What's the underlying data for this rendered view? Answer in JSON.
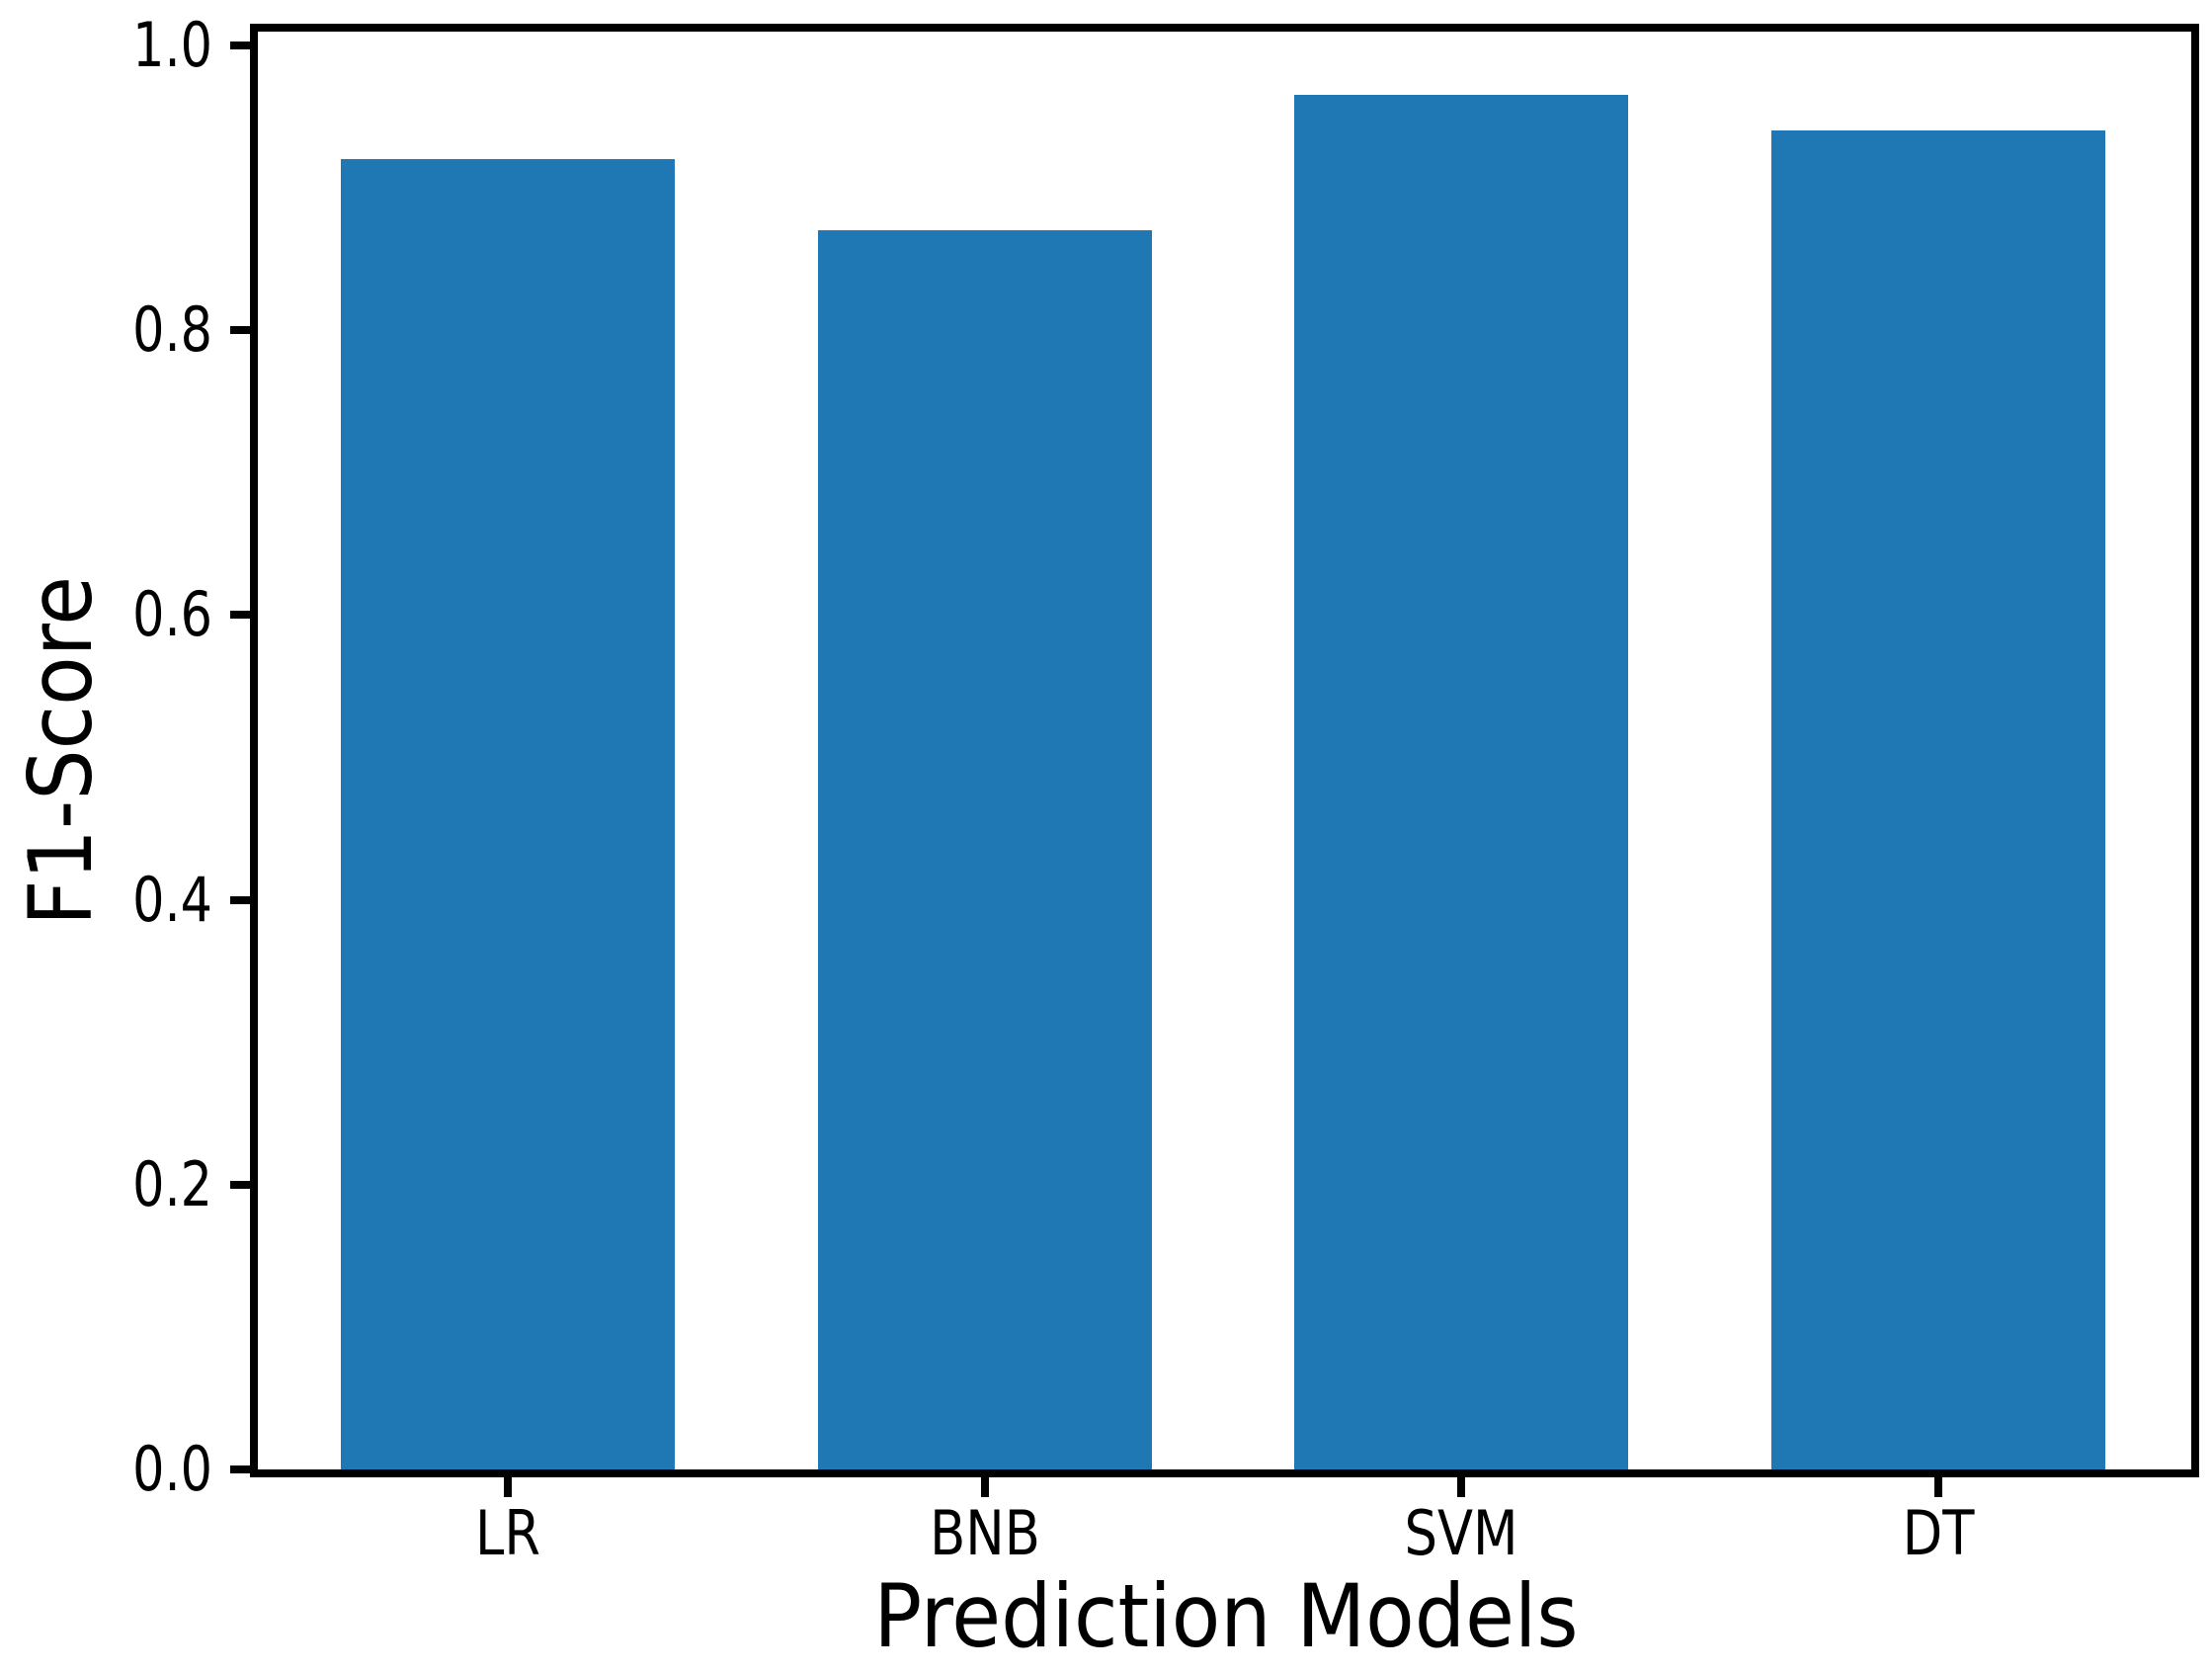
{
  "chart_data": {
    "type": "bar",
    "categories": [
      "LR",
      "BNB",
      "SVM",
      "DT"
    ],
    "values": [
      0.92,
      0.87,
      0.965,
      0.94
    ],
    "title": "",
    "xlabel": "Prediction Models",
    "ylabel": "F1-Score",
    "ylim": [
      0,
      1.01
    ],
    "yticks": [
      0.0,
      0.2,
      0.4,
      0.6,
      0.8,
      1.0
    ],
    "ytick_labels": [
      "0.0",
      "0.2",
      "0.4",
      "0.6",
      "0.8",
      "1.0"
    ],
    "bar_color": "#1f77b4",
    "axis_color": "#000000",
    "grid": false,
    "legend": "none"
  }
}
